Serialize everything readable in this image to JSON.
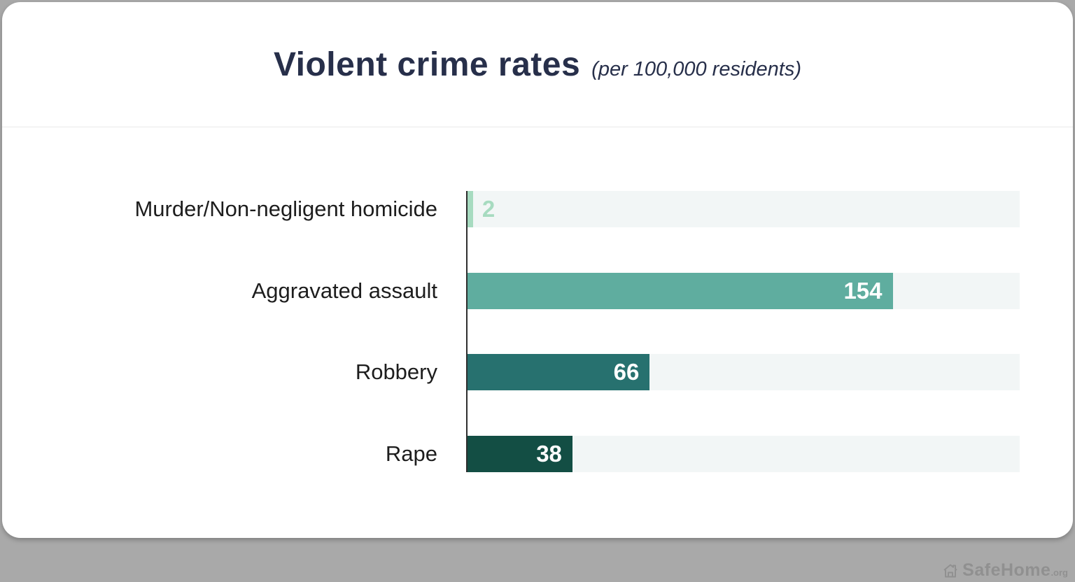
{
  "page": {
    "background_color": "#a9a9a9",
    "card_color": "#ffffff",
    "divider_color": "#e9e9e9"
  },
  "header": {
    "title": "Violent crime rates",
    "subtitle": "(per 100,000 residents)",
    "title_color": "#272f4a"
  },
  "watermark": {
    "text": "SafeHome",
    "suffix": ".org",
    "icon": "house-icon",
    "color": "#8f8f8f"
  },
  "chart_data": {
    "type": "bar",
    "orientation": "horizontal",
    "title": "Violent crime rates",
    "subtitle": "(per 100,000 residents)",
    "categories": [
      "Murder/Non-negligent homicide",
      "Aggravated assault",
      "Robbery",
      "Rape"
    ],
    "values": [
      2,
      154,
      66,
      38
    ],
    "bar_colors": [
      "#a7dbc0",
      "#5fad9f",
      "#27716f",
      "#134e44"
    ],
    "value_label_positions": [
      "outside",
      "inside",
      "inside",
      "inside"
    ],
    "value_label_colors": [
      "#a7dbc0",
      "#ffffff",
      "#ffffff",
      "#ffffff"
    ],
    "track_color": "#f2f6f6",
    "axis_line_color": "#2e2e2e",
    "axis_max": 200,
    "grid": false,
    "legend": false
  }
}
